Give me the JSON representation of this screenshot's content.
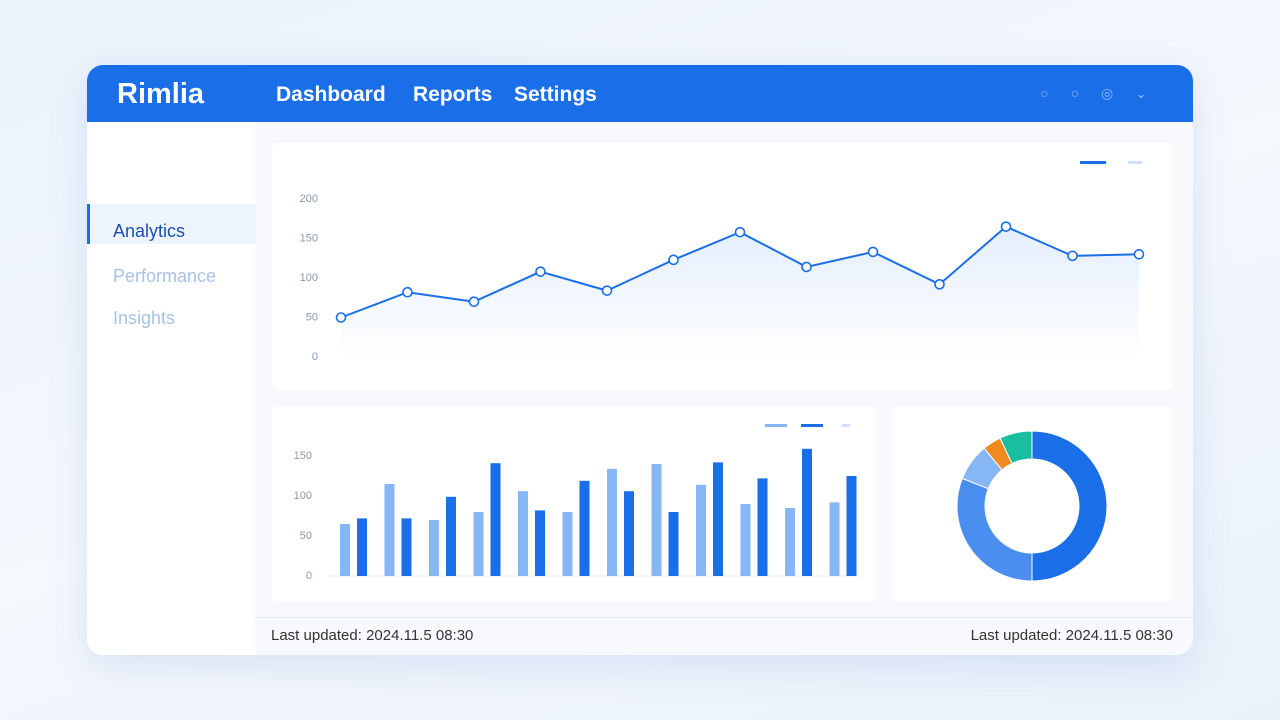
{
  "header": {
    "brand": "Rimlia",
    "nav": [
      "Dashboard",
      "Reports",
      "Settings"
    ]
  },
  "sidebar": {
    "items": [
      "Analytics",
      "Performance",
      "Insights"
    ]
  },
  "footer": {
    "left": "Last updated: 2024.11.5 08:30",
    "right": "Last updated: 2024.11.5 08:30"
  },
  "chart_data": [
    {
      "type": "line",
      "categories": [
        null,
        null,
        null,
        null,
        null,
        null,
        null,
        null,
        null,
        null,
        null,
        null,
        null
      ],
      "values": [
        50,
        82,
        70,
        108,
        84,
        123,
        158,
        114,
        133,
        92,
        165,
        128,
        130
      ],
      "color": "#1a6fe8",
      "ylim": [
        0,
        200
      ],
      "yticks": [
        0,
        50,
        100,
        150,
        200
      ]
    },
    {
      "type": "bar",
      "categories": [
        null,
        null,
        null,
        null,
        null,
        null,
        null,
        null,
        null,
        null,
        null,
        null
      ],
      "series": [
        {
          "color": "#86b6f4",
          "values": [
            65,
            115,
            70,
            80,
            106,
            80,
            134,
            140,
            114,
            90,
            85,
            92
          ]
        },
        {
          "color": "#1a6fe8",
          "values": [
            72,
            72,
            99,
            141,
            82,
            119,
            106,
            80,
            142,
            122,
            159,
            125
          ]
        }
      ],
      "ylim": [
        0,
        200
      ],
      "yticks": [
        0,
        50,
        100,
        150
      ]
    },
    {
      "type": "pie",
      "values": [
        50,
        31,
        8,
        4,
        7
      ],
      "colors": [
        "#1a6fe8",
        "#4a8ff0",
        "#86b6f4",
        "#f0891e",
        "#17bfa0"
      ]
    }
  ]
}
